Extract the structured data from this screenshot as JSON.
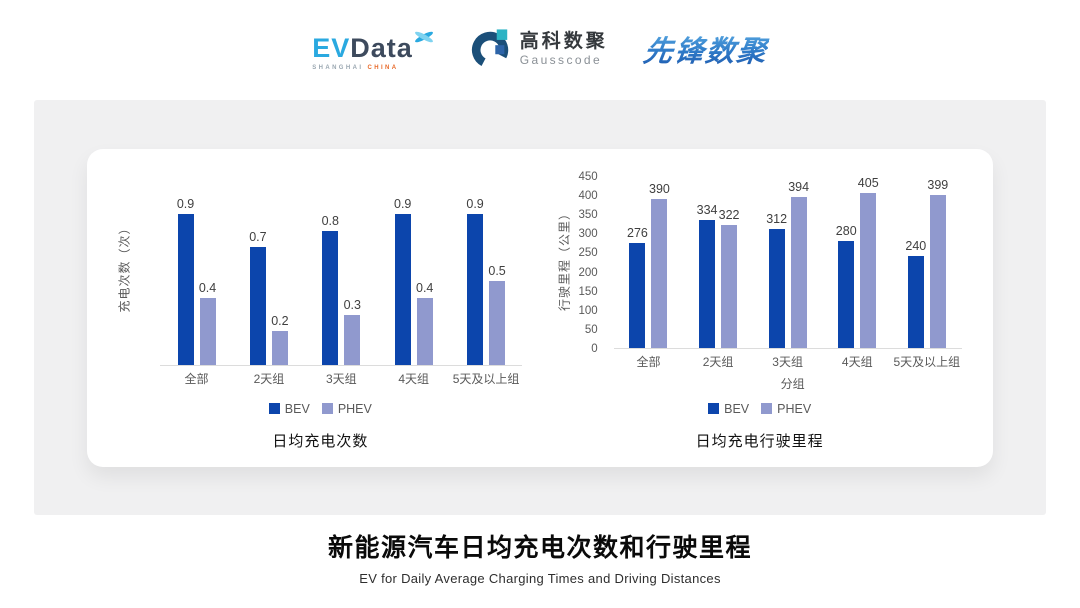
{
  "header": {
    "evdata": {
      "ev": "EV",
      "data": "Data",
      "sub_left": "SHANGHAI",
      "sub_right": "CHINA"
    },
    "gausscode": {
      "cn": "高科数聚",
      "en": "Gausscode"
    },
    "xianfeng": {
      "text": "先锋数聚"
    }
  },
  "colors": {
    "series": [
      "#0C45AC",
      "#9099CE"
    ],
    "axis_text": "#595959",
    "baseline": "#DCDCDC",
    "panel_bg": "#F0F0F1",
    "evdata_blue": "#2AA9E0",
    "evdata_slate": "#3D4A5D",
    "evdata_orange": "#E86A2A",
    "gauss_navy": "#1B4F79",
    "gauss_teal": "#2BB3C4"
  },
  "chart_data": [
    {
      "type": "bar",
      "title": "日均充电次数",
      "ylabel": "充电次数（次）",
      "xlabel": "",
      "categories": [
        "全部",
        "2天组",
        "3天组",
        "4天组",
        "5天及以上组"
      ],
      "series": [
        {
          "name": "BEV",
          "values": [
            0.9,
            0.7,
            0.8,
            0.9,
            0.9
          ]
        },
        {
          "name": "PHEV",
          "values": [
            0.4,
            0.2,
            0.3,
            0.4,
            0.5
          ]
        }
      ],
      "ylim": [
        0,
        1.0
      ],
      "yticks_visible": false,
      "legend_position": "bottom",
      "grid": false
    },
    {
      "type": "bar",
      "title": "日均充电行驶里程",
      "ylabel": "行驶里程（公里）",
      "xlabel": "分组",
      "categories": [
        "全部",
        "2天组",
        "3天组",
        "4天组",
        "5天及以上组"
      ],
      "series": [
        {
          "name": "BEV",
          "values": [
            276,
            334,
            312,
            280,
            240
          ]
        },
        {
          "name": "PHEV",
          "values": [
            390,
            322,
            394,
            405,
            399
          ]
        }
      ],
      "ylim": [
        0,
        450
      ],
      "ytick_step": 50,
      "yticks_visible": true,
      "legend_position": "bottom",
      "grid": false
    }
  ],
  "footer": {
    "title": "新能源汽车日均充电次数和行驶里程",
    "subtitle": "EV for Daily Average Charging Times and Driving Distances"
  }
}
